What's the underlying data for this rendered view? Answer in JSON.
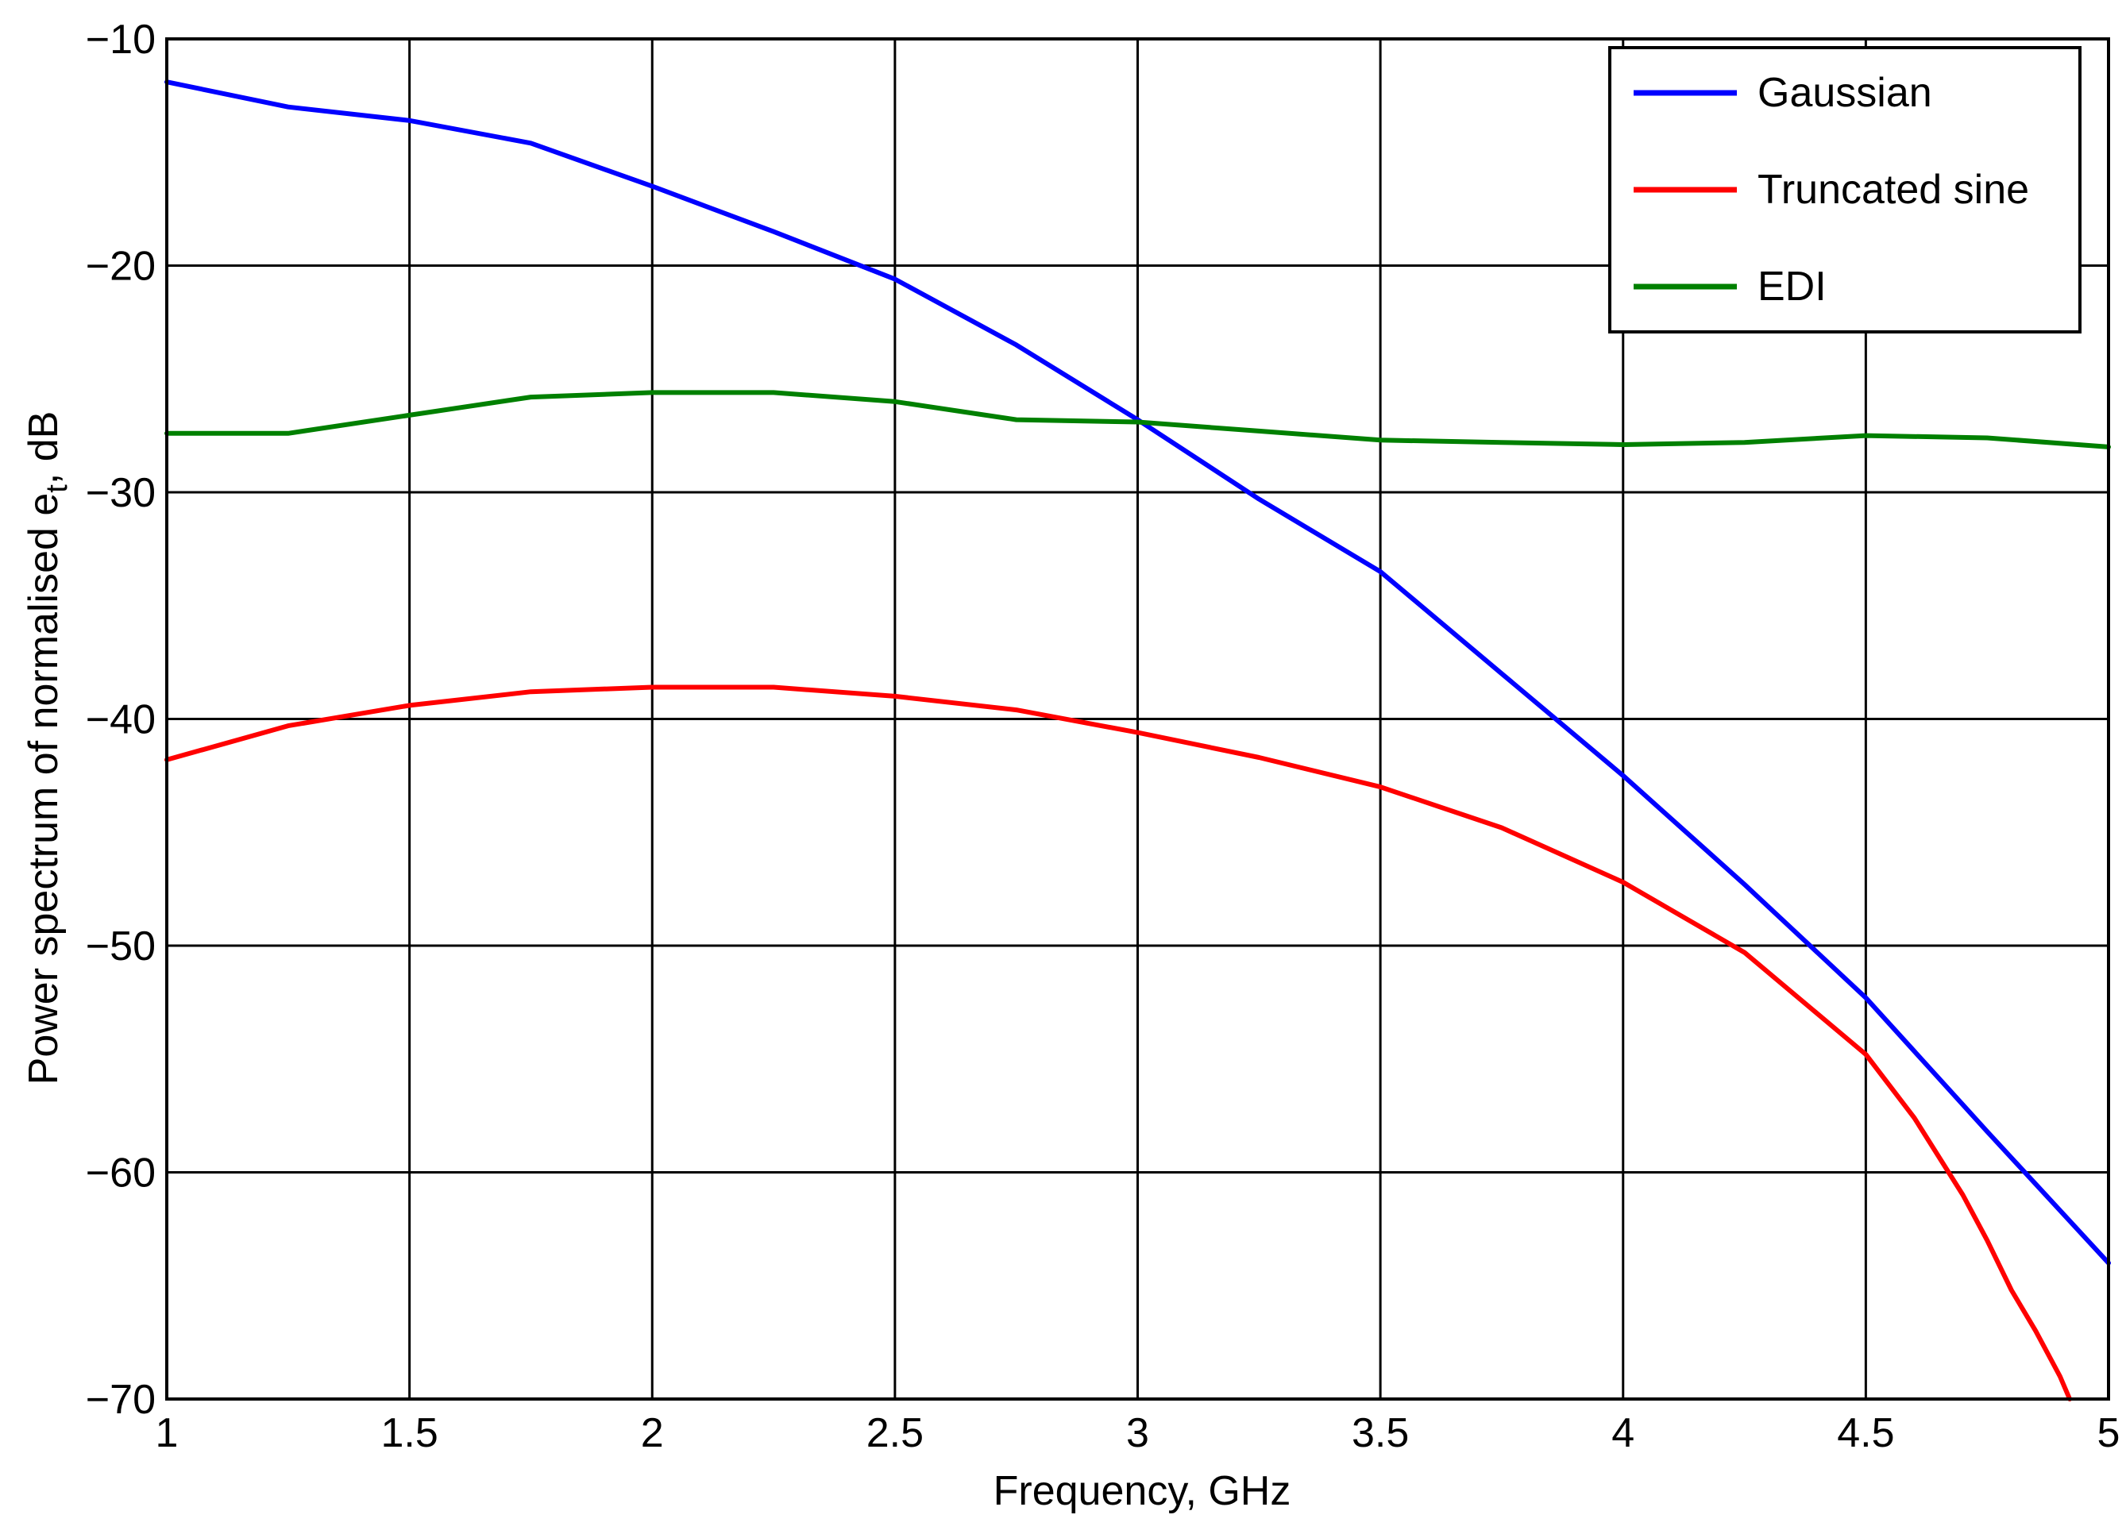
{
  "chart_data": {
    "type": "line",
    "title": "",
    "xlabel": "Frequency, GHz",
    "ylabel": "Power spectrum of normalised e",
    "ylabel_subscript": "t",
    "ylabel_suffix": ", dB",
    "xlim": [
      1,
      5
    ],
    "ylim": [
      -70,
      -10
    ],
    "xticks": [
      1,
      1.5,
      2,
      2.5,
      3,
      3.5,
      4,
      4.5,
      5
    ],
    "xtick_labels": [
      "1",
      "1.5",
      "2",
      "2.5",
      "3",
      "3.5",
      "4",
      "4.5",
      "5"
    ],
    "yticks": [
      -70,
      -60,
      -50,
      -40,
      -30,
      -20,
      -10
    ],
    "ytick_labels": [
      "−70",
      "−60",
      "−50",
      "−40",
      "−30",
      "−20",
      "−10"
    ],
    "grid": true,
    "legend_position": "top-right",
    "series": [
      {
        "name": "Gaussian",
        "color": "#0000ff",
        "x": [
          1.0,
          1.25,
          1.5,
          1.75,
          2.0,
          2.25,
          2.5,
          2.75,
          3.0,
          3.25,
          3.5,
          3.75,
          4.0,
          4.25,
          4.5,
          4.75,
          5.0
        ],
        "y": [
          -11.9,
          -13.0,
          -13.6,
          -14.6,
          -16.5,
          -18.5,
          -20.6,
          -23.5,
          -26.8,
          -30.3,
          -33.5,
          -38.0,
          -42.5,
          -47.3,
          -52.3,
          -58.2,
          -64.0
        ]
      },
      {
        "name": "Truncated sine",
        "color": "#ff0000",
        "x": [
          1.0,
          1.25,
          1.5,
          1.75,
          2.0,
          2.25,
          2.5,
          2.75,
          3.0,
          3.25,
          3.5,
          3.75,
          4.0,
          4.25,
          4.5,
          4.6,
          4.7,
          4.75,
          4.8,
          4.85,
          4.9,
          4.92
        ],
        "y": [
          -41.8,
          -40.3,
          -39.4,
          -38.8,
          -38.6,
          -38.6,
          -39.0,
          -39.6,
          -40.6,
          -41.7,
          -43.0,
          -44.8,
          -47.2,
          -50.3,
          -54.8,
          -57.6,
          -61.0,
          -63.0,
          -65.2,
          -67.0,
          -69.0,
          -70.0
        ]
      },
      {
        "name": "EDI",
        "color": "#008000",
        "x": [
          1.0,
          1.25,
          1.5,
          1.75,
          2.0,
          2.25,
          2.5,
          2.75,
          3.0,
          3.25,
          3.5,
          3.75,
          4.0,
          4.25,
          4.5,
          4.75,
          5.0
        ],
        "y": [
          -27.4,
          -27.4,
          -26.6,
          -25.8,
          -25.6,
          -25.6,
          -26.0,
          -26.8,
          -26.9,
          -27.3,
          -27.7,
          -27.8,
          -27.9,
          -27.8,
          -27.5,
          -27.6,
          -28.0
        ]
      }
    ]
  }
}
